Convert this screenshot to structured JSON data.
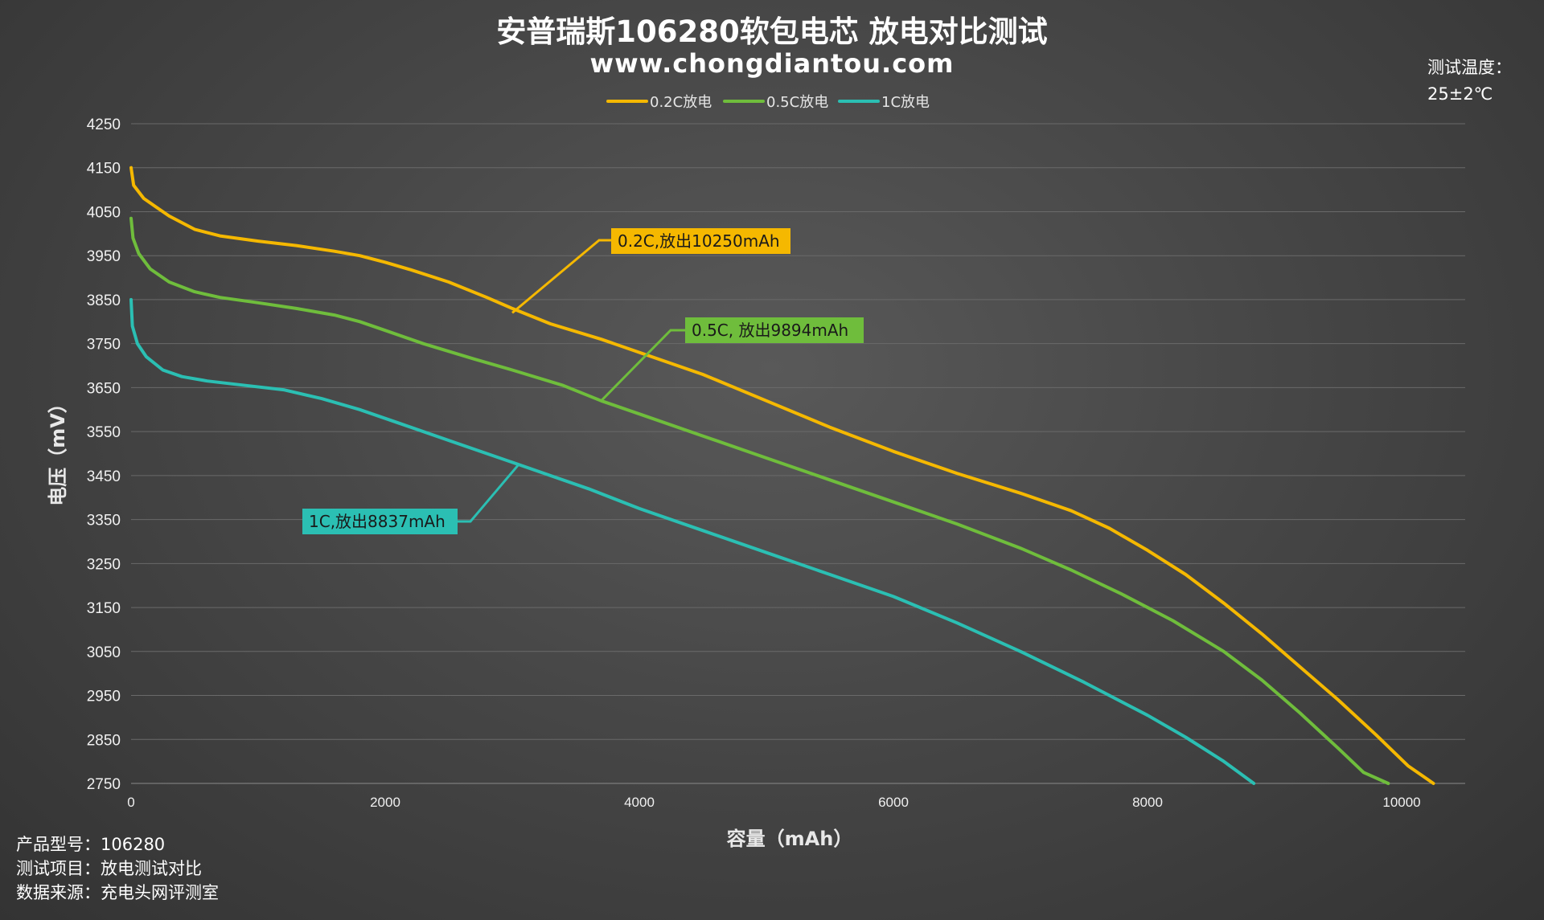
{
  "chart_data": {
    "type": "line",
    "title": "安普瑞斯106280软包电芯 放电对比测试",
    "subtitle": "www.chongdiantou.com",
    "xlabel": "容量（mAh）",
    "ylabel": "电压（mV）",
    "xlim": [
      0,
      10500
    ],
    "ylim": [
      2750,
      4250
    ],
    "xticks": [
      "0",
      "2000",
      "4000",
      "6000",
      "8000",
      "10000"
    ],
    "yticks": [
      "4250",
      "4150",
      "4050",
      "3950",
      "3850",
      "3750",
      "3650",
      "3550",
      "3450",
      "3350",
      "3250",
      "3150",
      "3050",
      "2950",
      "2850",
      "2750"
    ],
    "grid": true,
    "legend_position": "top-center",
    "series": [
      {
        "name": "0.2C放电",
        "color": "#f5b800",
        "points": [
          [
            0,
            4150
          ],
          [
            20,
            4110
          ],
          [
            100,
            4080
          ],
          [
            200,
            4060
          ],
          [
            300,
            4040
          ],
          [
            500,
            4010
          ],
          [
            700,
            3995
          ],
          [
            1000,
            3983
          ],
          [
            1300,
            3973
          ],
          [
            1600,
            3960
          ],
          [
            1800,
            3950
          ],
          [
            2000,
            3935
          ],
          [
            2200,
            3918
          ],
          [
            2500,
            3890
          ],
          [
            2800,
            3855
          ],
          [
            3000,
            3830
          ],
          [
            3300,
            3795
          ],
          [
            3700,
            3760
          ],
          [
            4000,
            3730
          ],
          [
            4500,
            3680
          ],
          [
            5000,
            3620
          ],
          [
            5500,
            3560
          ],
          [
            6000,
            3505
          ],
          [
            6500,
            3455
          ],
          [
            7000,
            3410
          ],
          [
            7400,
            3370
          ],
          [
            7700,
            3330
          ],
          [
            8000,
            3280
          ],
          [
            8300,
            3225
          ],
          [
            8600,
            3160
          ],
          [
            8900,
            3090
          ],
          [
            9200,
            3015
          ],
          [
            9500,
            2940
          ],
          [
            9800,
            2860
          ],
          [
            10050,
            2790
          ],
          [
            10250,
            2750
          ]
        ]
      },
      {
        "name": "0.5C放电",
        "color": "#6fbd3c",
        "points": [
          [
            0,
            4035
          ],
          [
            15,
            3990
          ],
          [
            60,
            3955
          ],
          [
            150,
            3920
          ],
          [
            300,
            3890
          ],
          [
            500,
            3868
          ],
          [
            700,
            3855
          ],
          [
            1000,
            3843
          ],
          [
            1300,
            3830
          ],
          [
            1600,
            3815
          ],
          [
            1800,
            3800
          ],
          [
            2000,
            3780
          ],
          [
            2300,
            3750
          ],
          [
            2700,
            3715
          ],
          [
            3000,
            3690
          ],
          [
            3400,
            3655
          ],
          [
            3700,
            3620
          ],
          [
            4000,
            3590
          ],
          [
            4500,
            3540
          ],
          [
            5000,
            3490
          ],
          [
            5500,
            3440
          ],
          [
            6000,
            3390
          ],
          [
            6500,
            3340
          ],
          [
            7000,
            3285
          ],
          [
            7400,
            3235
          ],
          [
            7800,
            3180
          ],
          [
            8200,
            3120
          ],
          [
            8600,
            3050
          ],
          [
            8900,
            2985
          ],
          [
            9200,
            2910
          ],
          [
            9500,
            2830
          ],
          [
            9700,
            2775
          ],
          [
            9894,
            2750
          ]
        ]
      },
      {
        "name": "1C放电",
        "color": "#2bbfb3",
        "points": [
          [
            0,
            3850
          ],
          [
            10,
            3790
          ],
          [
            50,
            3750
          ],
          [
            120,
            3720
          ],
          [
            250,
            3690
          ],
          [
            400,
            3675
          ],
          [
            600,
            3665
          ],
          [
            900,
            3655
          ],
          [
            1200,
            3645
          ],
          [
            1500,
            3625
          ],
          [
            1800,
            3600
          ],
          [
            2100,
            3570
          ],
          [
            2500,
            3530
          ],
          [
            2800,
            3500
          ],
          [
            3000,
            3480
          ],
          [
            3300,
            3450
          ],
          [
            3600,
            3420
          ],
          [
            4000,
            3375
          ],
          [
            4500,
            3325
          ],
          [
            5000,
            3275
          ],
          [
            5500,
            3225
          ],
          [
            6000,
            3175
          ],
          [
            6500,
            3115
          ],
          [
            7000,
            3050
          ],
          [
            7500,
            2980
          ],
          [
            8000,
            2905
          ],
          [
            8300,
            2855
          ],
          [
            8600,
            2800
          ],
          [
            8837,
            2750
          ]
        ]
      }
    ],
    "annotations": [
      {
        "text": "0.2C,放出10250mAh",
        "series": 0,
        "at": [
          3000,
          3820
        ],
        "color": "#f5b800",
        "text_color": "#1a1a1a"
      },
      {
        "text": "0.5C, 放出9894mAh",
        "series": 1,
        "at": [
          3700,
          3620
        ],
        "color": "#6fbd3c",
        "text_color": "#1a1a1a"
      },
      {
        "text": "1C,放出8837mAh",
        "series": 2,
        "at": [
          3050,
          3475
        ],
        "color": "#2bbfb3",
        "text_color": "#1a1a1a"
      }
    ]
  },
  "info": {
    "model": "产品型号：106280",
    "item": "测试项目：放电测试对比",
    "source": "数据来源：充电头网评测室"
  },
  "temperature": {
    "label": "测试温度：",
    "value": "25±2℃"
  }
}
